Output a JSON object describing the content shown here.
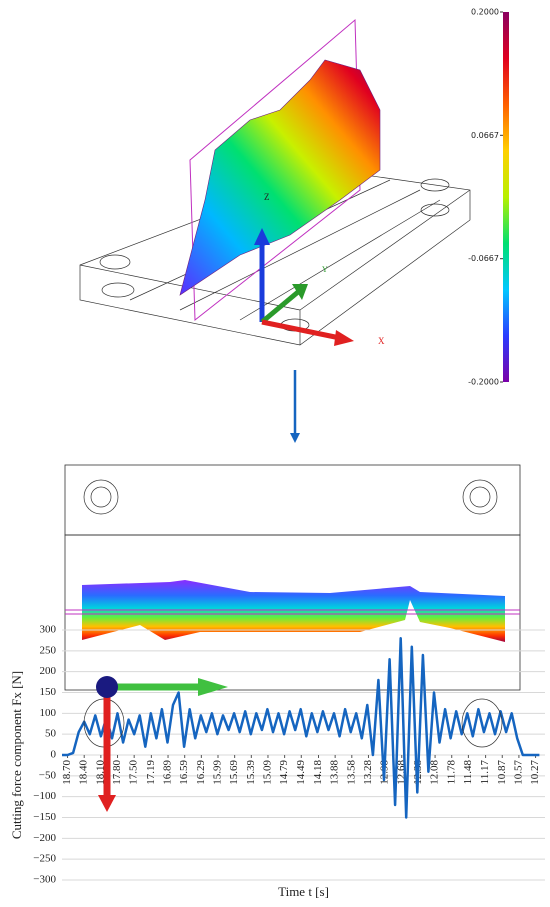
{
  "model_view": {
    "axis_labels": {
      "z": "Z",
      "y": "Y",
      "x": "X"
    }
  },
  "chart_data": [
    {
      "type": "colorbar",
      "ylim": [
        -0.2,
        0.2
      ],
      "yticks": [
        {
          "value": 0.2,
          "label": "0.2000"
        },
        {
          "value": 0.0667,
          "label": "0.0667"
        },
        {
          "value": -0.0667,
          "label": "-0.0667"
        },
        {
          "value": -0.2,
          "label": "-0.2000"
        }
      ],
      "colors": [
        "#7a00a8",
        "#2a3cff",
        "#00c8ff",
        "#00e070",
        "#b8f000",
        "#ffd000",
        "#ff6000",
        "#e00020",
        "#8a0060"
      ]
    },
    {
      "type": "line",
      "xlabel": "Time t [s]",
      "ylabel": "Cutting force component Fx [N]",
      "xlim": [
        18.8,
        10.1
      ],
      "ylim": [
        -300,
        300
      ],
      "xticks": [
        {
          "value": 18.7,
          "label": "18.70"
        },
        {
          "value": 18.4,
          "label": "18.40"
        },
        {
          "value": 18.1,
          "label": "18.10"
        },
        {
          "value": 17.8,
          "label": "17.80"
        },
        {
          "value": 17.5,
          "label": "17.50"
        },
        {
          "value": 17.19,
          "label": "17.19"
        },
        {
          "value": 16.89,
          "label": "16.89"
        },
        {
          "value": 16.59,
          "label": "16.59"
        },
        {
          "value": 16.29,
          "label": "16.29"
        },
        {
          "value": 15.99,
          "label": "15.99"
        },
        {
          "value": 15.69,
          "label": "15.69"
        },
        {
          "value": 15.39,
          "label": "15.39"
        },
        {
          "value": 15.09,
          "label": "15.09"
        },
        {
          "value": 14.79,
          "label": "14.79"
        },
        {
          "value": 14.49,
          "label": "14.49"
        },
        {
          "value": 14.18,
          "label": "14.18"
        },
        {
          "value": 13.88,
          "label": "13.88"
        },
        {
          "value": 13.58,
          "label": "13.58"
        },
        {
          "value": 13.28,
          "label": "13.28"
        },
        {
          "value": 12.98,
          "label": "12.98"
        },
        {
          "value": 12.68,
          "label": "12.68"
        },
        {
          "value": 12.38,
          "label": "12.38"
        },
        {
          "value": 12.08,
          "label": "12.08"
        },
        {
          "value": 11.78,
          "label": "11.78"
        },
        {
          "value": 11.48,
          "label": "11.48"
        },
        {
          "value": 11.17,
          "label": "11.17"
        },
        {
          "value": 10.87,
          "label": "10.87"
        },
        {
          "value": 10.57,
          "label": "10.57"
        },
        {
          "value": 10.27,
          "label": "10.27"
        }
      ],
      "yticks": [
        300,
        250,
        200,
        150,
        100,
        50,
        0,
        {
          "value": -50,
          "label": "−50"
        },
        {
          "value": -100,
          "label": "−100"
        },
        {
          "value": -150,
          "label": "−150"
        },
        {
          "value": -200,
          "label": "−200"
        },
        {
          "value": -250,
          "label": "−250"
        },
        {
          "value": -300,
          "label": "−300"
        }
      ],
      "grid": true,
      "x": [
        18.8,
        18.7,
        18.6,
        18.5,
        18.4,
        18.3,
        18.2,
        18.1,
        18.0,
        17.9,
        17.8,
        17.7,
        17.6,
        17.5,
        17.4,
        17.3,
        17.2,
        17.1,
        17.0,
        16.9,
        16.8,
        16.7,
        16.6,
        16.5,
        16.4,
        16.3,
        16.2,
        16.1,
        16.0,
        15.9,
        15.8,
        15.7,
        15.6,
        15.5,
        15.4,
        15.3,
        15.2,
        15.1,
        15.0,
        14.9,
        14.8,
        14.7,
        14.6,
        14.5,
        14.4,
        14.3,
        14.2,
        14.1,
        14.0,
        13.9,
        13.8,
        13.7,
        13.6,
        13.5,
        13.4,
        13.3,
        13.2,
        13.1,
        13.0,
        12.9,
        12.8,
        12.7,
        12.6,
        12.5,
        12.4,
        12.3,
        12.2,
        12.1,
        12.0,
        11.9,
        11.8,
        11.7,
        11.6,
        11.5,
        11.4,
        11.3,
        11.2,
        11.1,
        11.0,
        10.9,
        10.8,
        10.7,
        10.6,
        10.5,
        10.4,
        10.3,
        10.2
      ],
      "series": [
        {
          "color": "#1565c0",
          "values": [
            0,
            0,
            5,
            55,
            80,
            50,
            95,
            45,
            90,
            40,
            100,
            30,
            85,
            50,
            95,
            20,
            100,
            40,
            110,
            30,
            120,
            150,
            20,
            110,
            40,
            95,
            55,
            100,
            50,
            95,
            60,
            100,
            55,
            105,
            50,
            100,
            60,
            110,
            55,
            100,
            50,
            105,
            60,
            110,
            45,
            100,
            55,
            105,
            60,
            100,
            45,
            110,
            55,
            100,
            40,
            120,
            0,
            180,
            -60,
            230,
            -120,
            280,
            -150,
            260,
            -90,
            240,
            -40,
            150,
            30,
            110,
            40,
            105,
            50,
            100,
            45,
            110,
            55,
            100,
            50,
            105,
            55,
            100,
            40,
            0,
            0,
            0,
            0
          ]
        }
      ]
    }
  ]
}
